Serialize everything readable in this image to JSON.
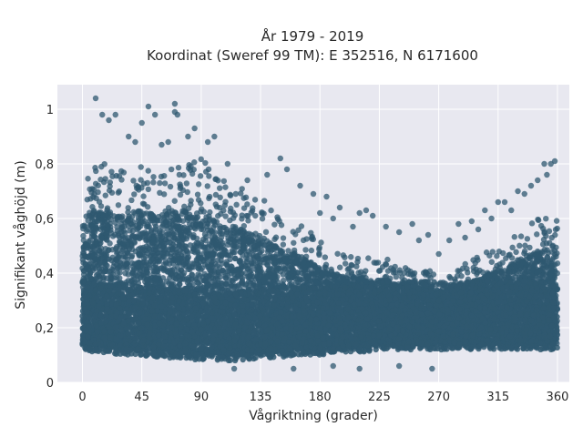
{
  "chart_data": {
    "type": "scatter",
    "title": "År 1979 - 2019",
    "subtitle": "Koordinat (Sweref 99 TM): E 352516, N 6171600",
    "xlabel": "Vågriktning (grader)",
    "ylabel": "Signifikant våghöjd (m)",
    "xlim": [
      -19,
      369
    ],
    "ylim": [
      0,
      1.09
    ],
    "xticks": [
      0,
      45,
      90,
      135,
      180,
      225,
      270,
      315,
      360
    ],
    "xtick_labels": [
      "0",
      "45",
      "90",
      "135",
      "180",
      "225",
      "270",
      "315",
      "360"
    ],
    "yticks": [
      0,
      0.2,
      0.4,
      0.6,
      0.8,
      1
    ],
    "ytick_labels": [
      "0",
      "0,2",
      "0,4",
      "0,6",
      "0,8",
      "1"
    ],
    "grid": true,
    "background": "#e8e8f0",
    "marker_color": "#2f5870",
    "series": [
      {
        "envelope_note_x": [
          0,
          10,
          20,
          30,
          45,
          60,
          75,
          90,
          105,
          120,
          135,
          150,
          165,
          180,
          195,
          210,
          225,
          240,
          255,
          270,
          285,
          300,
          315,
          330,
          345,
          360
        ],
        "upper": [
          0.72,
          0.8,
          0.8,
          0.78,
          0.8,
          0.78,
          0.8,
          0.82,
          0.74,
          0.72,
          0.68,
          0.62,
          0.58,
          0.52,
          0.48,
          0.47,
          0.46,
          0.44,
          0.42,
          0.4,
          0.42,
          0.46,
          0.5,
          0.55,
          0.6,
          0.6
        ],
        "lower": [
          0.1,
          0.09,
          0.09,
          0.08,
          0.08,
          0.07,
          0.07,
          0.06,
          0.06,
          0.06,
          0.07,
          0.07,
          0.08,
          0.08,
          0.09,
          0.09,
          0.1,
          0.1,
          0.1,
          0.1,
          0.1,
          0.1,
          0.1,
          0.1,
          0.1,
          0.1
        ],
        "outliers": [
          [
            10,
            1.04
          ],
          [
            15,
            0.98
          ],
          [
            20,
            0.96
          ],
          [
            25,
            0.98
          ],
          [
            35,
            0.9
          ],
          [
            40,
            0.88
          ],
          [
            45,
            0.95
          ],
          [
            50,
            1.01
          ],
          [
            55,
            0.98
          ],
          [
            60,
            0.87
          ],
          [
            65,
            0.88
          ],
          [
            70,
            1.02
          ],
          [
            70,
            0.99
          ],
          [
            72,
            0.98
          ],
          [
            80,
            0.9
          ],
          [
            85,
            0.93
          ],
          [
            95,
            0.88
          ],
          [
            100,
            0.9
          ],
          [
            110,
            0.8
          ],
          [
            125,
            0.74
          ],
          [
            140,
            0.76
          ],
          [
            150,
            0.82
          ],
          [
            155,
            0.78
          ],
          [
            165,
            0.72
          ],
          [
            175,
            0.69
          ],
          [
            185,
            0.68
          ],
          [
            195,
            0.64
          ],
          [
            210,
            0.62
          ],
          [
            215,
            0.63
          ],
          [
            230,
            0.57
          ],
          [
            240,
            0.55
          ],
          [
            255,
            0.52
          ],
          [
            262,
            0.54
          ],
          [
            270,
            0.47
          ],
          [
            278,
            0.52
          ],
          [
            290,
            0.53
          ],
          [
            300,
            0.56
          ],
          [
            305,
            0.63
          ],
          [
            315,
            0.66
          ],
          [
            320,
            0.66
          ],
          [
            330,
            0.7
          ],
          [
            335,
            0.69
          ],
          [
            340,
            0.72
          ],
          [
            345,
            0.74
          ],
          [
            350,
            0.8
          ],
          [
            355,
            0.8
          ],
          [
            358,
            0.81
          ],
          [
            352,
            0.76
          ],
          [
            210,
            0.05
          ],
          [
            265,
            0.05
          ],
          [
            240,
            0.06
          ],
          [
            190,
            0.06
          ],
          [
            160,
            0.05
          ],
          [
            115,
            0.05
          ],
          [
            180,
            0.62
          ],
          [
            190,
            0.6
          ],
          [
            205,
            0.57
          ],
          [
            220,
            0.61
          ],
          [
            250,
            0.58
          ],
          [
            285,
            0.58
          ],
          [
            295,
            0.59
          ],
          [
            310,
            0.6
          ],
          [
            325,
            0.63
          ]
        ]
      }
    ]
  }
}
